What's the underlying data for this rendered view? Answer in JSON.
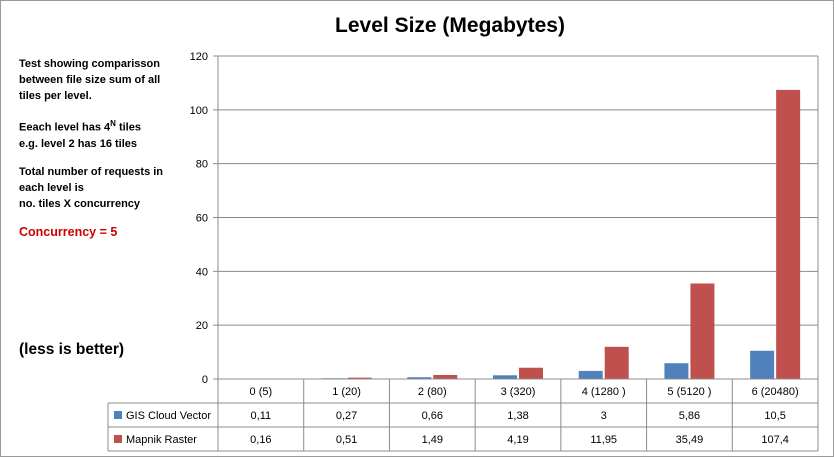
{
  "notes": {
    "lines": [
      "Test showing comparisson",
      "between file size sum of all",
      "tiles per level."
    ],
    "tiles_text_pre": "Eeach level has 4",
    "tiles_sup": "N",
    "tiles_text_post": " tiles",
    "example": "e.g. level 2 has 16 tiles",
    "requests": [
      "Total number of requests in",
      "each level is",
      "no. tiles X concurrency"
    ],
    "concurrency": "Concurrency = 5",
    "less_is_better": "(less is better)"
  },
  "colors": {
    "vector": "#4f81bd",
    "raster": "#c0504d",
    "concurrency_text": "#cc0000"
  },
  "chart_data": {
    "type": "bar",
    "title": "Level Size  (Megabytes)",
    "categories": [
      "0 (5)",
      "1 (20)",
      "2 (80)",
      "3 (320)",
      "4  (1280 )",
      "5 (5120 )",
      "6 (20480)"
    ],
    "series": [
      {
        "name": "GIS Cloud Vector",
        "values": [
          0.11,
          0.27,
          0.66,
          1.38,
          3,
          5.86,
          10.5
        ],
        "labels": [
          "0,11",
          "0,27",
          "0,66",
          "1,38",
          "3",
          "5,86",
          "10,5"
        ]
      },
      {
        "name": "Mapnik Raster",
        "values": [
          0.16,
          0.51,
          1.49,
          4.19,
          11.95,
          35.49,
          107.4
        ],
        "labels": [
          "0,16",
          "0,51",
          "1,49",
          "4,19",
          "11,95",
          "35,49",
          "107,4"
        ]
      }
    ],
    "ylim": [
      0,
      120
    ],
    "yticks": [
      "0",
      "20",
      "40",
      "60",
      "80",
      "100",
      "120"
    ],
    "grid": true,
    "legend": "data-table"
  }
}
